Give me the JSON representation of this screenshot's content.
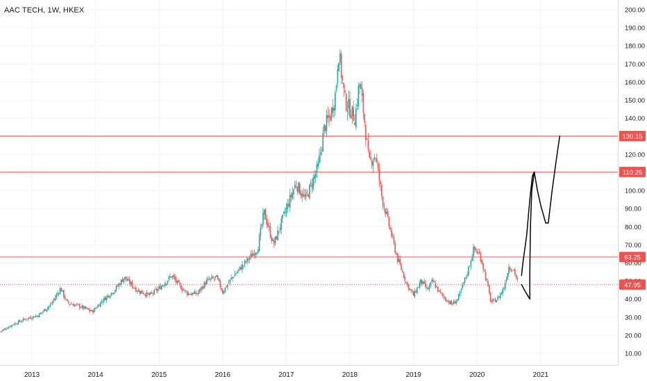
{
  "header": {
    "symbol_title": "AAC TECH, 1W, HKEX"
  },
  "colors": {
    "up": "#26a69a",
    "down": "#ef5350",
    "grid": "#f0f3fa",
    "axis_line": "#d6d8de",
    "axis_text": "#131722",
    "hline": "#ef5350",
    "hline_label_bg": "#ef5350",
    "last_price_bg": "#ef5350",
    "drawing": "#000000",
    "background": "#ffffff"
  },
  "chart_data": {
    "type": "candlestick",
    "title": "AAC TECH, 1W, HKEX",
    "x_tick_labels": [
      "2013",
      "2014",
      "2015",
      "2016",
      "2017",
      "2018",
      "2019",
      "2020",
      "2021"
    ],
    "y_tick_labels": [
      "10.00",
      "20.00",
      "30.00",
      "40.00",
      "50.00",
      "60.00",
      "70.00",
      "80.00",
      "90.00",
      "100.00",
      "110.00",
      "120.00",
      "130.00",
      "140.00",
      "150.00",
      "160.00",
      "170.00",
      "180.00",
      "190.00",
      "200.00"
    ],
    "ylim": [
      3,
      207
    ],
    "xlim": [
      2012.5,
      2021.7
    ],
    "grid": true,
    "price_levels": [
      130.15,
      110.25,
      63.25
    ],
    "last_price": 47.95,
    "price_level_labels": [
      "130.15",
      "110.25",
      "63.25"
    ],
    "last_price_label": "47.95",
    "series": [
      {
        "approx_close_path": [
          [
            2012.5,
            22
          ],
          [
            2012.7,
            26
          ],
          [
            2012.9,
            29
          ],
          [
            2013.1,
            31
          ],
          [
            2013.3,
            37
          ],
          [
            2013.45,
            46
          ],
          [
            2013.55,
            38
          ],
          [
            2013.75,
            36
          ],
          [
            2013.95,
            33
          ],
          [
            2014.1,
            39
          ],
          [
            2014.3,
            45
          ],
          [
            2014.45,
            52
          ],
          [
            2014.65,
            45
          ],
          [
            2014.85,
            42
          ],
          [
            2015.0,
            46
          ],
          [
            2015.2,
            53
          ],
          [
            2015.3,
            48
          ],
          [
            2015.45,
            43
          ],
          [
            2015.6,
            43
          ],
          [
            2015.75,
            50
          ],
          [
            2015.9,
            52
          ],
          [
            2016.0,
            44
          ],
          [
            2016.15,
            52
          ],
          [
            2016.35,
            60
          ],
          [
            2016.55,
            68
          ],
          [
            2016.65,
            88
          ],
          [
            2016.8,
            70
          ],
          [
            2016.95,
            85
          ],
          [
            2017.15,
            104
          ],
          [
            2017.3,
            95
          ],
          [
            2017.5,
            113
          ],
          [
            2017.6,
            135
          ],
          [
            2017.7,
            142
          ],
          [
            2017.78,
            155
          ],
          [
            2017.82,
            178
          ],
          [
            2017.92,
            150
          ],
          [
            2018.0,
            145
          ],
          [
            2018.08,
            140
          ],
          [
            2018.15,
            160
          ],
          [
            2018.22,
            142
          ],
          [
            2018.3,
            115
          ],
          [
            2018.4,
            120
          ],
          [
            2018.5,
            97
          ],
          [
            2018.62,
            80
          ],
          [
            2018.75,
            62
          ],
          [
            2018.9,
            48
          ],
          [
            2019.0,
            42
          ],
          [
            2019.12,
            50
          ],
          [
            2019.22,
            45
          ],
          [
            2019.3,
            50
          ],
          [
            2019.42,
            43
          ],
          [
            2019.6,
            37
          ],
          [
            2019.7,
            40
          ],
          [
            2019.85,
            55
          ],
          [
            2019.95,
            68
          ],
          [
            2020.05,
            64
          ],
          [
            2020.15,
            50
          ],
          [
            2020.22,
            38
          ],
          [
            2020.32,
            40
          ],
          [
            2020.42,
            46
          ],
          [
            2020.5,
            58
          ],
          [
            2020.58,
            56
          ],
          [
            2020.65,
            48
          ]
        ]
      }
    ],
    "drawings": [
      {
        "type": "freehand",
        "points": [
          [
            2020.7,
            53
          ],
          [
            2020.72,
            60
          ],
          [
            2020.78,
            75
          ],
          [
            2020.83,
            95
          ],
          [
            2020.87,
            108
          ],
          [
            2020.9,
            110.25
          ],
          [
            2020.95,
            100
          ],
          [
            2021.0,
            92
          ],
          [
            2021.08,
            82
          ],
          [
            2021.12,
            82
          ],
          [
            2021.18,
            100
          ],
          [
            2021.25,
            118
          ],
          [
            2021.3,
            130.15
          ]
        ]
      },
      {
        "type": "freehand",
        "points": [
          [
            2020.7,
            48
          ],
          [
            2020.76,
            44
          ],
          [
            2020.83,
            40
          ],
          [
            2020.83,
            55
          ],
          [
            2020.84,
            80
          ],
          [
            2020.86,
            100
          ],
          [
            2020.9,
            110.25
          ]
        ]
      }
    ]
  }
}
